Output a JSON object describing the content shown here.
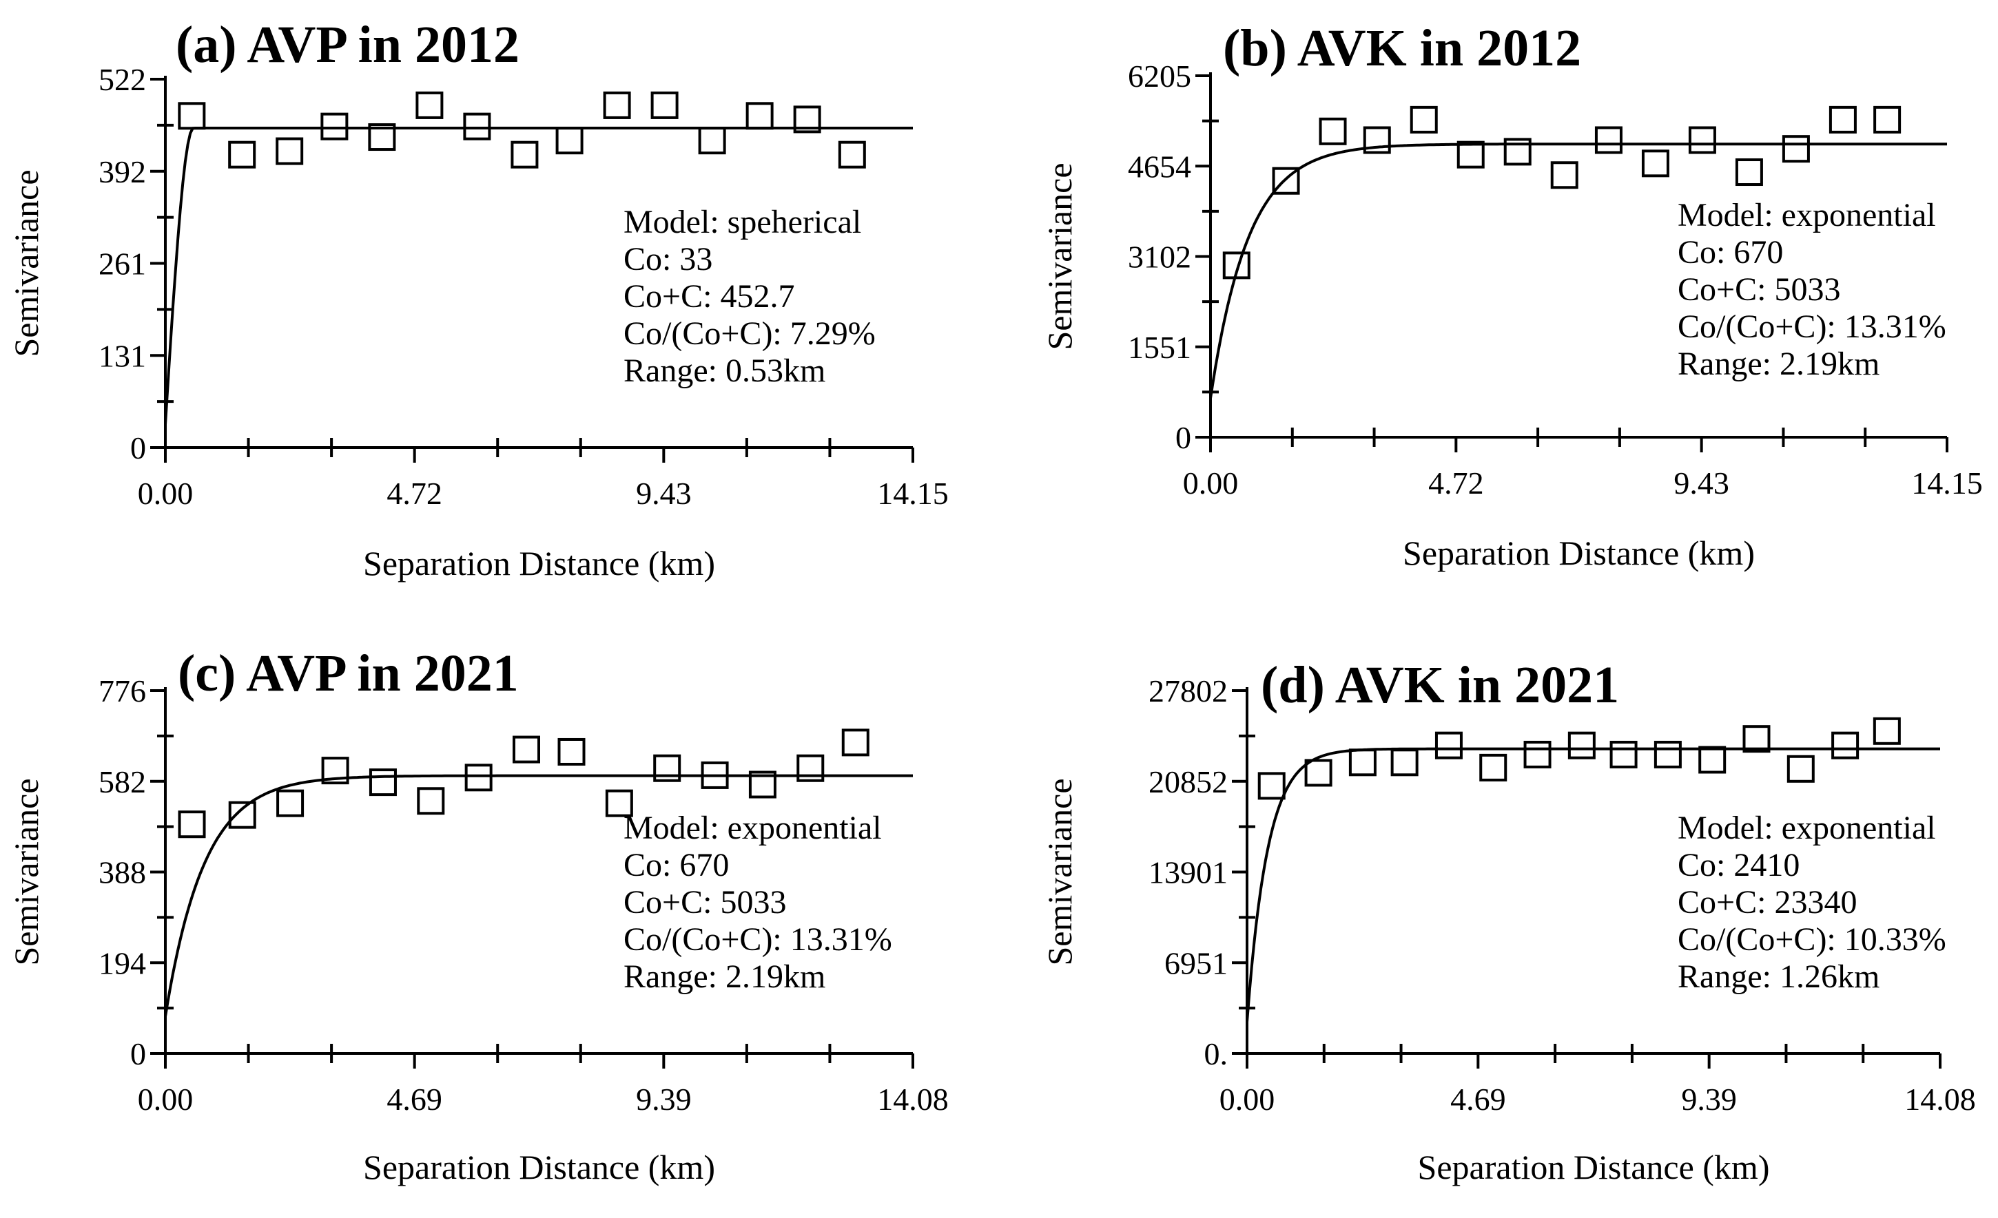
{
  "chart_data": [
    {
      "type": "scatter",
      "title": "(a) AVP in 2012",
      "xlabel": "Separation Distance (km)",
      "ylabel": "Semivariance",
      "xlim": [
        0,
        14.15
      ],
      "ylim": [
        0,
        522
      ],
      "x_ticks": [
        "0.00",
        "4.72",
        "9.43",
        "14.15"
      ],
      "y_ticks": [
        "0",
        "131",
        "261",
        "392",
        "522"
      ],
      "model": {
        "type": "spherical",
        "nugget": 33,
        "sill": 452.7,
        "range_km": 0.53
      },
      "annotation": [
        "Model: speherical",
        "Co: 33",
        "Co+C: 452.7",
        "Co/(Co+C): 7.29%",
        "Range: 0.53km"
      ],
      "points": {
        "x": [
          0.5,
          1.45,
          2.35,
          3.2,
          4.1,
          5.0,
          5.9,
          6.8,
          7.65,
          8.55,
          9.45,
          10.35,
          11.25,
          12.15,
          13.0
        ],
        "y": [
          470,
          415,
          420,
          455,
          440,
          485,
          455,
          415,
          435,
          485,
          485,
          435,
          470,
          465,
          415
        ]
      }
    },
    {
      "type": "scatter",
      "title": "(b) AVK in 2012",
      "xlabel": "Separation Distance (km)",
      "ylabel": "Semivariance",
      "xlim": [
        0,
        14.15
      ],
      "ylim": [
        0,
        6205
      ],
      "x_ticks": [
        "0.00",
        "4.72",
        "9.43",
        "14.15"
      ],
      "y_ticks": [
        "0",
        "1551",
        "3102",
        "4654",
        "6205"
      ],
      "model": {
        "type": "exponential",
        "nugget": 670,
        "sill": 5033,
        "range_km": 2.19
      },
      "annotation": [
        "Model: exponential",
        "Co: 670",
        "Co+C: 5033",
        "Co/(Co+C): 13.31%",
        "Range: 2.19km"
      ],
      "points": {
        "x": [
          0.5,
          1.45,
          2.35,
          3.2,
          4.1,
          5.0,
          5.9,
          6.8,
          7.65,
          8.55,
          9.45,
          10.35,
          11.25,
          12.15,
          13.0
        ],
        "y": [
          2950,
          4400,
          5250,
          5100,
          5450,
          4850,
          4900,
          4500,
          5100,
          4700,
          5100,
          4550,
          4950,
          5450,
          5450
        ]
      }
    },
    {
      "type": "scatter",
      "title": "(c) AVP in 2021",
      "xlabel": "Separation Distance (km)",
      "ylabel": "Semivariance",
      "xlim": [
        0,
        14.08
      ],
      "ylim": [
        0,
        776
      ],
      "x_ticks": [
        "0.00",
        "4.69",
        "9.39",
        "14.08"
      ],
      "y_ticks": [
        "0",
        "194",
        "388",
        "582",
        "776"
      ],
      "model": {
        "type": "exponential",
        "nugget": 670,
        "sill": 5033,
        "range_km": 2.19
      },
      "annotation": [
        "Model: exponential",
        "Co: 670",
        "Co+C: 5033",
        "Co/(Co+C): 13.31%",
        "Range: 2.19km"
      ],
      "points": {
        "x": [
          0.5,
          1.45,
          2.35,
          3.2,
          4.1,
          5.0,
          5.9,
          6.8,
          7.65,
          8.55,
          9.45,
          10.35,
          11.25,
          12.15,
          13.0
        ],
        "y": [
          490,
          510,
          535,
          605,
          580,
          540,
          590,
          650,
          645,
          535,
          610,
          595,
          575,
          610,
          665
        ]
      }
    },
    {
      "type": "scatter",
      "title": "(d) AVK in 2021",
      "xlabel": "Separation Distance (km)",
      "ylabel": "Semivariance",
      "xlim": [
        0,
        14.08
      ],
      "ylim": [
        0,
        27802
      ],
      "x_ticks": [
        "0.",
        "4.69",
        "9.39",
        "14.08"
      ],
      "x_ticks_full": [
        "0.00",
        "4.69",
        "9.39",
        "14.08"
      ],
      "y_ticks": [
        "0.",
        "6951",
        "13901",
        "20852",
        "27802"
      ],
      "model": {
        "type": "exponential",
        "nugget": 2410,
        "sill": 23340,
        "range_km": 1.26
      },
      "annotation": [
        "Model: exponential",
        "Co: 2410",
        "Co+C: 23340",
        "Co/(Co+C): 10.33%",
        "Range: 1.26km"
      ],
      "points": {
        "x": [
          0.5,
          1.45,
          2.35,
          3.2,
          4.1,
          5.0,
          5.9,
          6.8,
          7.65,
          8.55,
          9.45,
          10.35,
          11.25,
          12.15,
          13.0
        ],
        "y": [
          20500,
          21500,
          22300,
          22300,
          23600,
          21900,
          22900,
          23600,
          22900,
          22900,
          22500,
          24100,
          21800,
          23600,
          24700
        ]
      }
    }
  ]
}
